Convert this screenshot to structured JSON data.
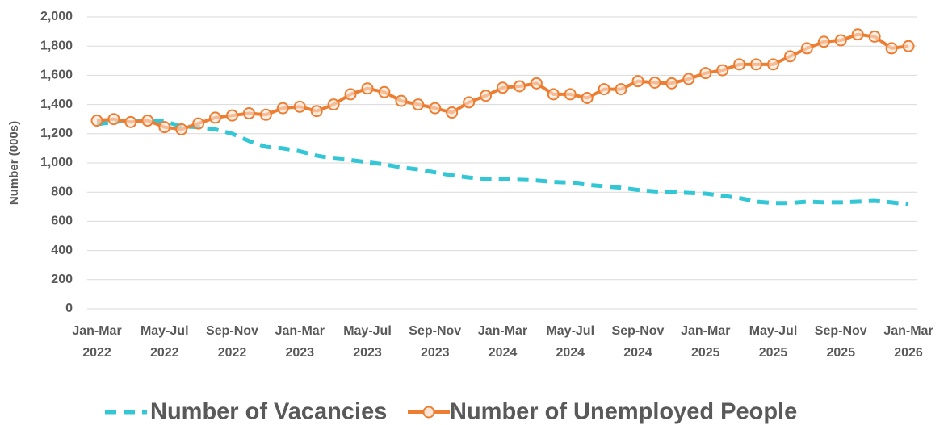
{
  "chart_data": {
    "type": "line",
    "y_label": "Number (000s)",
    "categories": [
      "Jan-Mar 2022",
      null,
      null,
      null,
      "May-Jul 2022",
      null,
      null,
      null,
      "Sep-Nov 2022",
      null,
      null,
      null,
      "Jan-Mar 2023",
      null,
      null,
      null,
      "May-Jul 2023",
      null,
      null,
      null,
      "Sep-Nov 2023",
      null,
      null,
      null,
      "Jan-Mar 2024",
      null,
      null,
      null,
      "May-Jul 2024",
      null,
      null,
      null,
      "Sep-Nov 2024",
      null,
      null,
      null,
      "Jan-Mar 2025",
      null,
      null,
      null,
      "May-Jul 2025",
      null,
      null,
      null,
      "Sep-Nov 2025",
      null,
      null,
      null,
      "Jan-Mar 2026"
    ],
    "series": [
      {
        "name": "Number of Vacancies",
        "color": "#33c7d6",
        "dashed": true,
        "markers": false,
        "values": [
          1265,
          1280,
          1290,
          1290,
          1285,
          1250,
          1245,
          1230,
          1200,
          1150,
          1110,
          1100,
          1080,
          1050,
          1030,
          1020,
          1005,
          990,
          970,
          955,
          935,
          915,
          900,
          890,
          890,
          885,
          880,
          870,
          865,
          850,
          840,
          830,
          815,
          805,
          800,
          795,
          790,
          775,
          760,
          735,
          725,
          725,
          735,
          730,
          730,
          735,
          740,
          730,
          715
        ]
      },
      {
        "name": "Number of Unemployed People",
        "color": "#ed7d31",
        "dashed": false,
        "markers": true,
        "values": [
          1290,
          1300,
          1280,
          1290,
          1245,
          1230,
          1270,
          1310,
          1325,
          1340,
          1330,
          1375,
          1385,
          1355,
          1400,
          1470,
          1510,
          1485,
          1425,
          1400,
          1375,
          1345,
          1415,
          1460,
          1515,
          1525,
          1545,
          1470,
          1470,
          1445,
          1505,
          1505,
          1560,
          1550,
          1545,
          1575,
          1615,
          1635,
          1675,
          1675,
          1675,
          1730,
          1785,
          1830,
          1840,
          1880,
          1865,
          1785,
          1800
        ]
      }
    ],
    "ylim": [
      0,
      2000
    ],
    "yticks": [
      0,
      200,
      400,
      600,
      800,
      {
        "value": 1000,
        "label": "1,000"
      },
      {
        "value": 1200,
        "label": "1,200"
      },
      {
        "value": 1400,
        "label": "1,400"
      },
      {
        "value": 1600,
        "label": "1,600"
      },
      {
        "value": 1800,
        "label": "1,800"
      },
      {
        "value": 2000,
        "label": "2,000"
      }
    ],
    "grid": true,
    "legend": "bottom"
  }
}
